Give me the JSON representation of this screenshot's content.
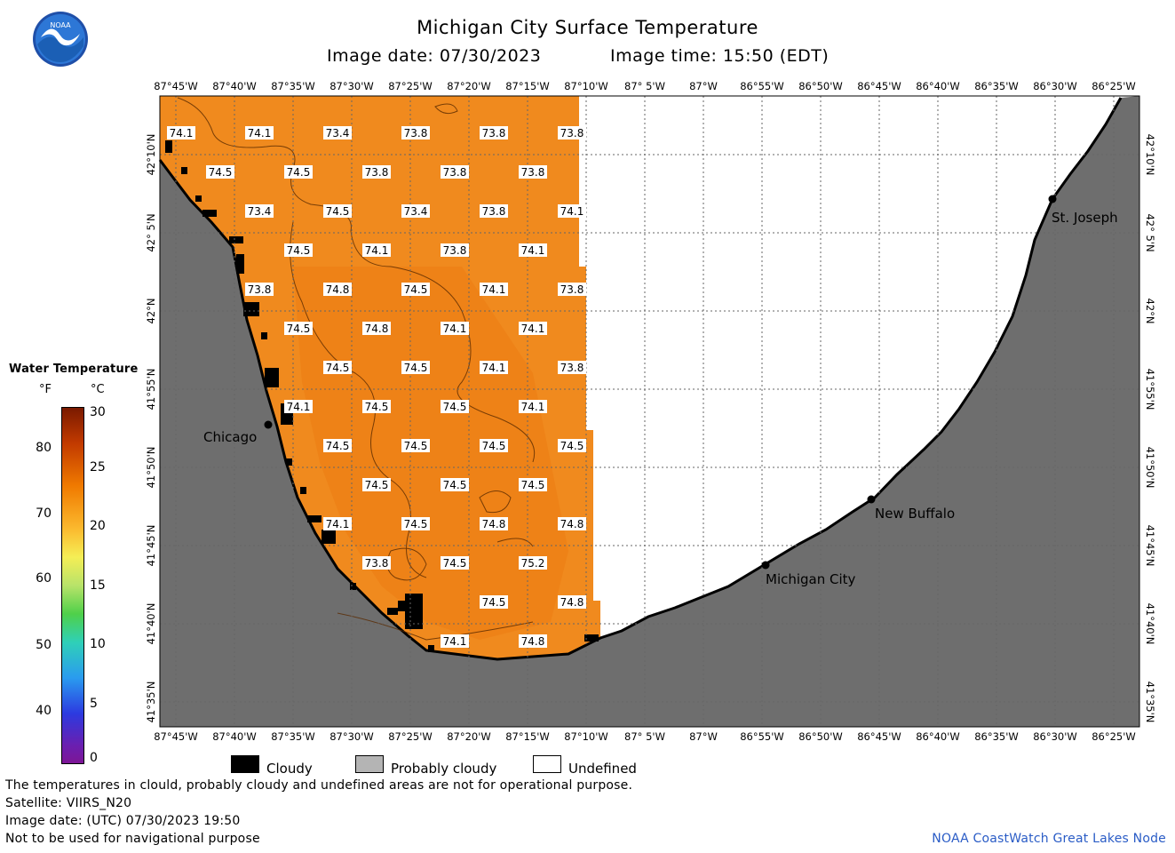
{
  "header": {
    "title": "Michigan City Surface Temperature",
    "image_date": "Image date: 07/30/2023",
    "image_time": "Image time: 15:50 (EDT)"
  },
  "logo": {
    "text": "NOAA",
    "icon": "noaa-logo-icon"
  },
  "map": {
    "lon_labels": [
      "87°45'W",
      "87°40'W",
      "87°35'W",
      "87°30'W",
      "87°25'W",
      "87°20'W",
      "87°15'W",
      "87°10'W",
      "87° 5'W",
      "87°W",
      "86°55'W",
      "86°50'W",
      "86°45'W",
      "86°40'W",
      "86°35'W",
      "86°30'W",
      "86°25'W"
    ],
    "lat_labels": [
      "42°10'N",
      "42° 5'N",
      "42°N",
      "41°55'N",
      "41°50'N",
      "41°45'N",
      "41°40'N",
      "41°35'N"
    ],
    "cities": [
      {
        "name": "Chicago"
      },
      {
        "name": "St. Joseph"
      },
      {
        "name": "New Buffalo"
      },
      {
        "name": "Michigan City"
      }
    ],
    "temperature_labels": [
      {
        "v": "74.1"
      },
      {
        "v": "74.1"
      },
      {
        "v": "73.4"
      },
      {
        "v": "73.8"
      },
      {
        "v": "73.8"
      },
      {
        "v": "73.8"
      },
      {
        "v": "74.5"
      },
      {
        "v": "74.5"
      },
      {
        "v": "73.8"
      },
      {
        "v": "73.8"
      },
      {
        "v": "73.8"
      },
      {
        "v": "73.4"
      },
      {
        "v": "74.5"
      },
      {
        "v": "73.4"
      },
      {
        "v": "73.8"
      },
      {
        "v": "74.1"
      },
      {
        "v": "74.5"
      },
      {
        "v": "74.1"
      },
      {
        "v": "73.8"
      },
      {
        "v": "74.1"
      },
      {
        "v": "73.8"
      },
      {
        "v": "74.8"
      },
      {
        "v": "74.5"
      },
      {
        "v": "74.1"
      },
      {
        "v": "73.8"
      },
      {
        "v": "74.5"
      },
      {
        "v": "74.8"
      },
      {
        "v": "74.1"
      },
      {
        "v": "74.1"
      },
      {
        "v": "74.5"
      },
      {
        "v": "74.5"
      },
      {
        "v": "74.1"
      },
      {
        "v": "73.8"
      },
      {
        "v": "74.1"
      },
      {
        "v": "74.5"
      },
      {
        "v": "74.5"
      },
      {
        "v": "74.1"
      },
      {
        "v": "74.5"
      },
      {
        "v": "74.5"
      },
      {
        "v": "74.5"
      },
      {
        "v": "74.5"
      },
      {
        "v": "74.5"
      },
      {
        "v": "74.5"
      },
      {
        "v": "74.5"
      },
      {
        "v": "74.1"
      },
      {
        "v": "74.5"
      },
      {
        "v": "74.8"
      },
      {
        "v": "74.8"
      },
      {
        "v": "73.8"
      },
      {
        "v": "74.5"
      },
      {
        "v": "75.2"
      },
      {
        "v": "74.5"
      },
      {
        "v": "74.8"
      },
      {
        "v": "74.1"
      },
      {
        "v": "74.8"
      }
    ],
    "colors": {
      "water": "#f08a1e",
      "land": "#6e6e6e",
      "undefined": "#ffffff",
      "cloud": "#000000"
    }
  },
  "legend": {
    "title": "Water Temperature",
    "unit_f": "°F",
    "unit_c": "°C",
    "ticks_f": [
      "80",
      "70",
      "60",
      "50",
      "40"
    ],
    "ticks_c": [
      "30",
      "25",
      "20",
      "15",
      "10",
      "5",
      "0"
    ]
  },
  "key": {
    "cloudy": "Cloudy",
    "probably_cloudy": "Probably cloudy",
    "undefined": "Undefined"
  },
  "footer": {
    "line1": "The temperatures in clould, probably cloudy and undefined areas are not for operational purpose.",
    "line2": "Satellite: VIIRS_N20",
    "line3": "Image date: (UTC) 07/30/2023  19:50",
    "line4": "Not to be used for navigational purpose",
    "credit": "NOAA CoastWatch Great Lakes Node"
  }
}
